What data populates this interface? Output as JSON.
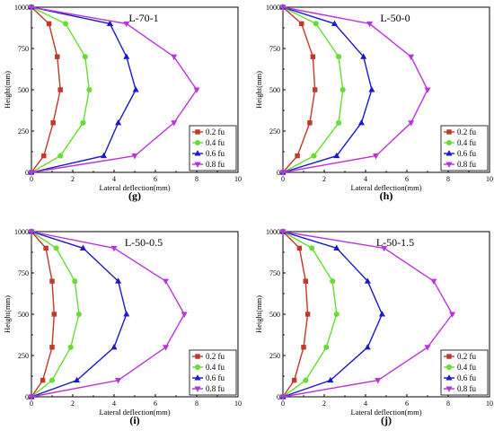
{
  "chart_data": [
    {
      "type": "line",
      "title": "L-70-1",
      "caption": "(g)",
      "xlabel": "Lateral deflection(mm)",
      "ylabel": "Height(mm)",
      "xlim": [
        0,
        10
      ],
      "ylim": [
        0,
        1000
      ],
      "xticks": [
        "0",
        "2",
        "4",
        "6",
        "8",
        "10"
      ],
      "yticks": [
        "0",
        "250",
        "500",
        "750",
        "1000"
      ],
      "legend_position": "bottom-right",
      "y": [
        0,
        100,
        300,
        500,
        700,
        900,
        1000
      ],
      "series": [
        {
          "name": "0.2 fu",
          "color": "#c0392b",
          "marker": "square",
          "values": [
            0,
            0.6,
            1.05,
            1.4,
            1.25,
            0.85,
            0
          ]
        },
        {
          "name": "0.4 fu",
          "color": "#66dd33",
          "marker": "circle",
          "values": [
            0,
            1.4,
            2.5,
            2.8,
            2.6,
            1.65,
            0
          ]
        },
        {
          "name": "0.6 fu",
          "color": "#1a1acc",
          "marker": "triangle-up",
          "values": [
            0,
            3.5,
            4.2,
            5.05,
            4.6,
            3.8,
            0
          ]
        },
        {
          "name": "0.8 fu",
          "color": "#bb33dd",
          "marker": "triangle-down",
          "values": [
            0,
            5.0,
            6.9,
            8.0,
            6.9,
            4.6,
            0
          ]
        }
      ]
    },
    {
      "type": "line",
      "title": "L-50-0",
      "caption": "(h)",
      "xlabel": "Lateral deflection(mm)",
      "ylabel": "Height(mm)",
      "xlim": [
        0,
        10
      ],
      "ylim": [
        0,
        1000
      ],
      "xticks": [
        "0",
        "2",
        "4",
        "6",
        "8",
        "10"
      ],
      "yticks": [
        "0",
        "250",
        "500",
        "750",
        "1000"
      ],
      "legend_position": "bottom-right",
      "y": [
        0,
        100,
        300,
        500,
        700,
        900,
        1000
      ],
      "series": [
        {
          "name": "0.2 fu",
          "color": "#c0392b",
          "marker": "square",
          "values": [
            0,
            0.7,
            1.3,
            1.55,
            1.45,
            0.9,
            0
          ]
        },
        {
          "name": "0.4 fu",
          "color": "#66dd33",
          "marker": "circle",
          "values": [
            0,
            1.5,
            2.7,
            2.9,
            2.7,
            1.6,
            0
          ]
        },
        {
          "name": "0.6 fu",
          "color": "#1a1acc",
          "marker": "triangle-up",
          "values": [
            0,
            2.6,
            3.8,
            4.3,
            3.9,
            2.5,
            0
          ]
        },
        {
          "name": "0.8 fu",
          "color": "#bb33dd",
          "marker": "triangle-down",
          "values": [
            0,
            4.5,
            6.2,
            7.0,
            6.2,
            4.2,
            0
          ]
        }
      ]
    },
    {
      "type": "line",
      "title": "L-50-0.5",
      "caption": "(i)",
      "xlabel": "Lateral deflection(mm)",
      "ylabel": "Height(mm)",
      "xlim": [
        0,
        10
      ],
      "ylim": [
        0,
        1000
      ],
      "xticks": [
        "0",
        "2",
        "4",
        "6",
        "8",
        "10"
      ],
      "yticks": [
        "0",
        "250",
        "500",
        "750",
        "1000"
      ],
      "legend_position": "bottom-right",
      "y": [
        0,
        100,
        300,
        500,
        700,
        900,
        1000
      ],
      "series": [
        {
          "name": "0.2 fu",
          "color": "#c0392b",
          "marker": "square",
          "values": [
            0,
            0.55,
            1.0,
            1.1,
            1.0,
            0.7,
            0
          ]
        },
        {
          "name": "0.4 fu",
          "color": "#66dd33",
          "marker": "circle",
          "values": [
            0,
            1.0,
            1.9,
            2.3,
            2.1,
            1.2,
            0
          ]
        },
        {
          "name": "0.6 fu",
          "color": "#1a1acc",
          "marker": "triangle-up",
          "values": [
            0,
            2.2,
            4.0,
            4.6,
            4.2,
            2.5,
            0
          ]
        },
        {
          "name": "0.8 fu",
          "color": "#bb33dd",
          "marker": "triangle-down",
          "values": [
            0,
            4.2,
            6.5,
            7.4,
            6.5,
            4.0,
            0
          ]
        }
      ]
    },
    {
      "type": "line",
      "title": "L-50-1.5",
      "caption": "(j)",
      "xlabel": "Lateral deflection(mm)",
      "ylabel": "Height(mm)",
      "xlim": [
        0,
        10
      ],
      "ylim": [
        0,
        1000
      ],
      "xticks": [
        "0",
        "2",
        "4",
        "6",
        "8",
        "10"
      ],
      "yticks": [
        "0",
        "250",
        "500",
        "750",
        "1000"
      ],
      "legend_position": "bottom-right",
      "y": [
        0,
        100,
        300,
        500,
        700,
        900,
        1000
      ],
      "series": [
        {
          "name": "0.2 fu",
          "color": "#c0392b",
          "marker": "square",
          "values": [
            0,
            0.55,
            1.0,
            1.2,
            1.1,
            0.8,
            0
          ]
        },
        {
          "name": "0.4 fu",
          "color": "#66dd33",
          "marker": "circle",
          "values": [
            0,
            1.1,
            2.1,
            2.6,
            2.4,
            1.4,
            0
          ]
        },
        {
          "name": "0.6 fu",
          "color": "#1a1acc",
          "marker": "triangle-up",
          "values": [
            0,
            2.3,
            4.1,
            4.8,
            4.1,
            2.6,
            0
          ]
        },
        {
          "name": "0.8 fu",
          "color": "#bb33dd",
          "marker": "triangle-down",
          "values": [
            0,
            4.6,
            7.0,
            8.2,
            7.3,
            4.9,
            0
          ]
        }
      ]
    }
  ]
}
